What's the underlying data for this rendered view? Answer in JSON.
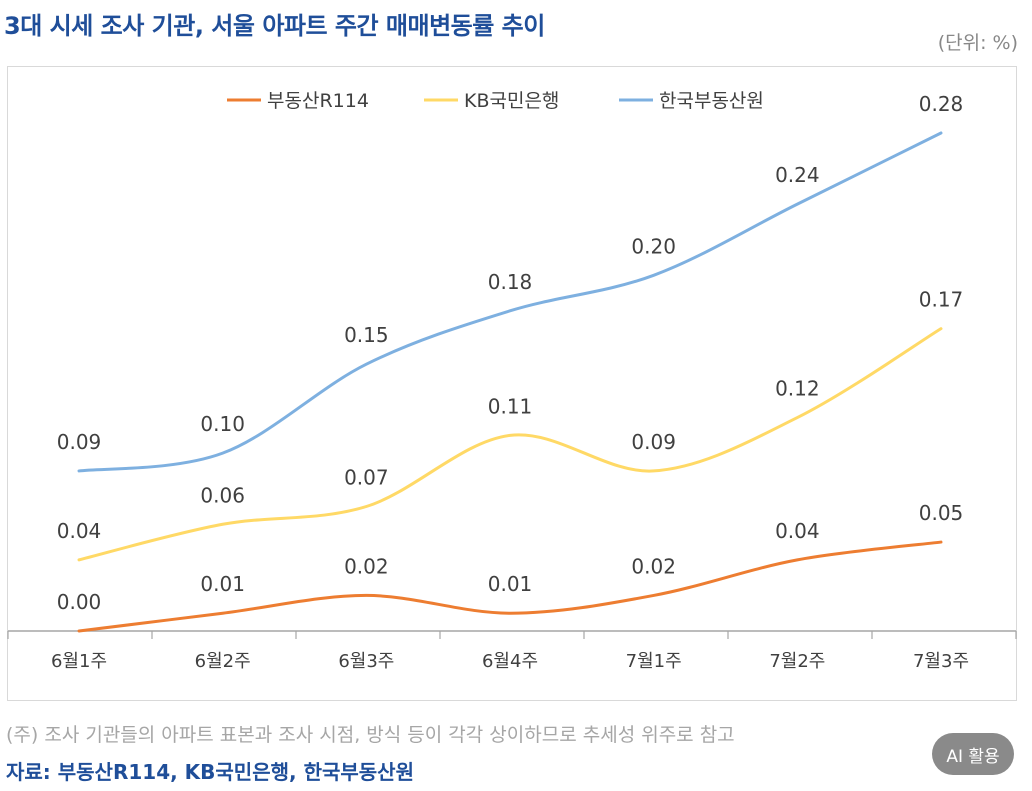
{
  "title": "3대 시세 조사 기관, 서울 아파트 주간 매매변동률 추이",
  "unit": "(단위: %)",
  "note": "(주) 조사 기관들의 아파트 표본과 조사 시점, 방식 등이 각각 상이하므로 추세성 위주로 참고",
  "source": "자료: 부동산R114, KB국민은행, 한국부동산원",
  "ai_button": {
    "label": "AI 활용"
  },
  "chart_data": {
    "type": "line",
    "categories": [
      "6월1주",
      "6월2주",
      "6월3주",
      "6월4주",
      "7월1주",
      "7월2주",
      "7월3주"
    ],
    "series": [
      {
        "name": "부동산R114",
        "color": "#ed7d31",
        "values": [
          0.0,
          0.01,
          0.02,
          0.01,
          0.02,
          0.04,
          0.05
        ],
        "labels": [
          "0.00",
          "0.01",
          "0.02",
          "0.01",
          "0.02",
          "0.04",
          "0.05"
        ]
      },
      {
        "name": "KB국민은행",
        "color": "#ffd966",
        "values": [
          0.04,
          0.06,
          0.07,
          0.11,
          0.09,
          0.12,
          0.17
        ],
        "labels": [
          "0.04",
          "0.06",
          "0.07",
          "0.11",
          "0.09",
          "0.12",
          "0.17"
        ]
      },
      {
        "name": "한국부동산원",
        "color": "#7eb0e0",
        "values": [
          0.09,
          0.1,
          0.15,
          0.18,
          0.2,
          0.24,
          0.28
        ],
        "labels": [
          "0.09",
          "0.10",
          "0.15",
          "0.18",
          "0.20",
          "0.24",
          "0.28"
        ]
      }
    ],
    "ylim": [
      0,
      0.28
    ],
    "grid": false,
    "legend_position": "top-center",
    "smooth": true
  }
}
